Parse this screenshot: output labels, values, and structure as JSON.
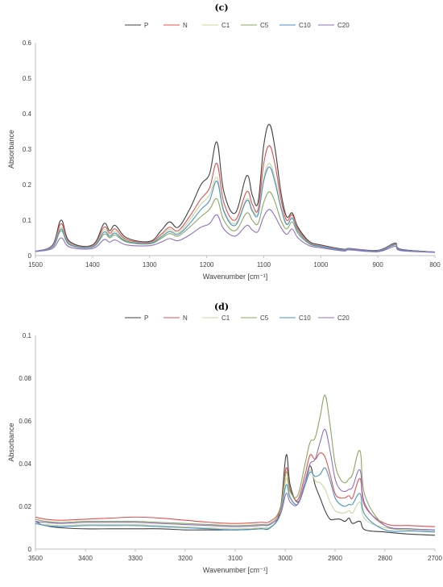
{
  "chart_data": [
    {
      "panel": "(c)",
      "type": "line",
      "xlabel": "Wavenumber [cm⁻¹]",
      "ylabel": "Absorbance",
      "xlim": [
        1500,
        800
      ],
      "ylim": [
        0,
        0.6
      ],
      "x_reversed": true,
      "grid": false,
      "legend_position": "top",
      "x_ticks": [
        "1500",
        "1400",
        "1300",
        "1200",
        "1100",
        "1000",
        "900",
        "800"
      ],
      "y_ticks": [
        "0",
        "0.1",
        "0.2",
        "0.3",
        "0.4",
        "0.5",
        "0.6"
      ],
      "series": [
        {
          "name": "P",
          "color": "#404040",
          "x": [
            1500,
            1470,
            1455,
            1440,
            1400,
            1380,
            1370,
            1360,
            1340,
            1300,
            1280,
            1265,
            1250,
            1230,
            1210,
            1195,
            1182,
            1170,
            1150,
            1130,
            1120,
            1110,
            1100,
            1090,
            1080,
            1070,
            1060,
            1050,
            1040,
            1020,
            1000,
            960,
            950,
            900,
            870,
            860,
            800
          ],
          "y": [
            0.012,
            0.03,
            0.1,
            0.04,
            0.03,
            0.09,
            0.07,
            0.085,
            0.05,
            0.04,
            0.07,
            0.095,
            0.08,
            0.13,
            0.2,
            0.23,
            0.32,
            0.18,
            0.12,
            0.225,
            0.17,
            0.15,
            0.31,
            0.37,
            0.3,
            0.18,
            0.11,
            0.12,
            0.08,
            0.04,
            0.03,
            0.018,
            0.02,
            0.015,
            0.035,
            0.018,
            0.01
          ]
        },
        {
          "name": "N",
          "color": "#e05050",
          "x": [
            1500,
            1470,
            1455,
            1440,
            1400,
            1380,
            1370,
            1360,
            1340,
            1300,
            1280,
            1265,
            1250,
            1230,
            1210,
            1195,
            1182,
            1170,
            1150,
            1130,
            1120,
            1110,
            1100,
            1090,
            1080,
            1070,
            1060,
            1050,
            1040,
            1020,
            1000,
            960,
            950,
            900,
            870,
            860,
            800
          ],
          "y": [
            0.012,
            0.028,
            0.09,
            0.036,
            0.028,
            0.08,
            0.063,
            0.075,
            0.045,
            0.038,
            0.06,
            0.08,
            0.07,
            0.11,
            0.16,
            0.19,
            0.26,
            0.15,
            0.1,
            0.18,
            0.145,
            0.13,
            0.26,
            0.31,
            0.255,
            0.16,
            0.1,
            0.115,
            0.075,
            0.038,
            0.028,
            0.017,
            0.02,
            0.014,
            0.033,
            0.017,
            0.01
          ]
        },
        {
          "name": "C1",
          "color": "#c8d8a0",
          "x": [
            1500,
            1470,
            1455,
            1440,
            1400,
            1380,
            1370,
            1360,
            1340,
            1300,
            1280,
            1265,
            1250,
            1230,
            1210,
            1195,
            1182,
            1170,
            1150,
            1130,
            1120,
            1110,
            1100,
            1090,
            1080,
            1070,
            1060,
            1050,
            1040,
            1020,
            1000,
            960,
            950,
            900,
            870,
            860,
            800
          ],
          "y": [
            0.012,
            0.026,
            0.08,
            0.034,
            0.026,
            0.072,
            0.058,
            0.068,
            0.042,
            0.036,
            0.056,
            0.074,
            0.064,
            0.1,
            0.145,
            0.17,
            0.22,
            0.13,
            0.09,
            0.16,
            0.13,
            0.12,
            0.22,
            0.26,
            0.215,
            0.14,
            0.09,
            0.108,
            0.07,
            0.036,
            0.027,
            0.016,
            0.019,
            0.013,
            0.032,
            0.016,
            0.01
          ]
        },
        {
          "name": "C5",
          "color": "#8aa860",
          "x": [
            1500,
            1470,
            1455,
            1440,
            1400,
            1380,
            1370,
            1360,
            1340,
            1300,
            1280,
            1265,
            1250,
            1230,
            1210,
            1195,
            1182,
            1170,
            1150,
            1130,
            1120,
            1110,
            1100,
            1090,
            1080,
            1070,
            1060,
            1050,
            1040,
            1020,
            1000,
            960,
            950,
            900,
            870,
            860,
            800
          ],
          "y": [
            0.012,
            0.024,
            0.07,
            0.03,
            0.024,
            0.06,
            0.05,
            0.058,
            0.038,
            0.033,
            0.048,
            0.062,
            0.055,
            0.08,
            0.11,
            0.13,
            0.16,
            0.1,
            0.07,
            0.12,
            0.1,
            0.09,
            0.15,
            0.18,
            0.15,
            0.1,
            0.075,
            0.095,
            0.062,
            0.033,
            0.025,
            0.015,
            0.018,
            0.013,
            0.03,
            0.016,
            0.01
          ]
        },
        {
          "name": "C10",
          "color": "#4a90c8",
          "x": [
            1500,
            1470,
            1455,
            1440,
            1400,
            1380,
            1370,
            1360,
            1340,
            1300,
            1280,
            1265,
            1250,
            1230,
            1210,
            1195,
            1182,
            1170,
            1150,
            1130,
            1120,
            1110,
            1100,
            1090,
            1080,
            1070,
            1060,
            1050,
            1040,
            1020,
            1000,
            960,
            950,
            900,
            870,
            860,
            800
          ],
          "y": [
            0.012,
            0.025,
            0.075,
            0.032,
            0.025,
            0.066,
            0.054,
            0.063,
            0.04,
            0.035,
            0.052,
            0.068,
            0.06,
            0.09,
            0.13,
            0.155,
            0.21,
            0.125,
            0.085,
            0.155,
            0.125,
            0.115,
            0.21,
            0.25,
            0.205,
            0.135,
            0.088,
            0.105,
            0.068,
            0.035,
            0.026,
            0.016,
            0.019,
            0.013,
            0.031,
            0.016,
            0.01
          ]
        },
        {
          "name": "C20",
          "color": "#9070c0",
          "x": [
            1500,
            1470,
            1455,
            1440,
            1400,
            1380,
            1370,
            1360,
            1340,
            1300,
            1280,
            1265,
            1250,
            1230,
            1210,
            1195,
            1182,
            1170,
            1150,
            1130,
            1120,
            1110,
            1100,
            1090,
            1080,
            1070,
            1060,
            1050,
            1040,
            1020,
            1000,
            960,
            950,
            900,
            870,
            860,
            800
          ],
          "y": [
            0.011,
            0.02,
            0.05,
            0.024,
            0.02,
            0.045,
            0.038,
            0.044,
            0.03,
            0.028,
            0.038,
            0.048,
            0.042,
            0.058,
            0.08,
            0.09,
            0.115,
            0.075,
            0.055,
            0.085,
            0.072,
            0.068,
            0.11,
            0.13,
            0.11,
            0.08,
            0.06,
            0.075,
            0.05,
            0.028,
            0.022,
            0.013,
            0.016,
            0.011,
            0.026,
            0.014,
            0.009
          ]
        }
      ]
    },
    {
      "panel": "(d)",
      "type": "line",
      "xlabel": "Wavenumber [cm⁻¹]",
      "ylabel": "Absorbance",
      "xlim": [
        3500,
        2700
      ],
      "ylim": [
        0,
        0.1
      ],
      "x_reversed": true,
      "grid": false,
      "legend_position": "top",
      "x_ticks": [
        "3500",
        "3400",
        "3300",
        "3200",
        "3100",
        "3000",
        "2900",
        "2800",
        "2700"
      ],
      "y_ticks": [
        "0",
        "0.02",
        "0.04",
        "0.06",
        "0.08",
        "0.1"
      ],
      "series": [
        {
          "name": "P",
          "color": "#404040",
          "x": [
            3500,
            3480,
            3450,
            3400,
            3350,
            3300,
            3250,
            3200,
            3150,
            3100,
            3050,
            3030,
            3010,
            2998,
            2990,
            2975,
            2960,
            2950,
            2940,
            2930,
            2920,
            2910,
            2900,
            2890,
            2880,
            2872,
            2865,
            2850,
            2840,
            2800,
            2750,
            2700
          ],
          "y": [
            0.013,
            0.011,
            0.01,
            0.0095,
            0.0095,
            0.0095,
            0.0095,
            0.009,
            0.009,
            0.009,
            0.0095,
            0.01,
            0.018,
            0.044,
            0.03,
            0.022,
            0.03,
            0.039,
            0.03,
            0.024,
            0.018,
            0.014,
            0.014,
            0.014,
            0.013,
            0.0145,
            0.012,
            0.013,
            0.009,
            0.008,
            0.007,
            0.0065
          ]
        },
        {
          "name": "N",
          "color": "#e05050",
          "x": [
            3500,
            3480,
            3450,
            3400,
            3350,
            3300,
            3250,
            3200,
            3150,
            3100,
            3050,
            3030,
            3010,
            2998,
            2990,
            2975,
            2960,
            2950,
            2940,
            2930,
            2920,
            2910,
            2900,
            2890,
            2880,
            2872,
            2865,
            2850,
            2840,
            2800,
            2750,
            2700
          ],
          "y": [
            0.015,
            0.014,
            0.0135,
            0.014,
            0.0145,
            0.015,
            0.0145,
            0.0135,
            0.0125,
            0.012,
            0.0125,
            0.013,
            0.019,
            0.038,
            0.028,
            0.023,
            0.035,
            0.044,
            0.042,
            0.045,
            0.043,
            0.035,
            0.026,
            0.024,
            0.024,
            0.025,
            0.024,
            0.033,
            0.02,
            0.012,
            0.011,
            0.0105
          ]
        },
        {
          "name": "C1",
          "color": "#c8d8a0",
          "x": [
            3500,
            3480,
            3450,
            3400,
            3350,
            3300,
            3250,
            3200,
            3150,
            3100,
            3050,
            3030,
            3010,
            2998,
            2990,
            2975,
            2960,
            2950,
            2940,
            2930,
            2920,
            2910,
            2900,
            2890,
            2880,
            2872,
            2865,
            2850,
            2840,
            2800,
            2750,
            2700
          ],
          "y": [
            0.012,
            0.0115,
            0.011,
            0.0115,
            0.0115,
            0.0115,
            0.011,
            0.0105,
            0.01,
            0.0095,
            0.01,
            0.0105,
            0.016,
            0.033,
            0.025,
            0.021,
            0.03,
            0.037,
            0.032,
            0.031,
            0.028,
            0.022,
            0.018,
            0.017,
            0.017,
            0.018,
            0.017,
            0.022,
            0.014,
            0.01,
            0.009,
            0.0085
          ]
        },
        {
          "name": "C5",
          "color": "#8aa860",
          "x": [
            3500,
            3480,
            3450,
            3400,
            3350,
            3300,
            3250,
            3200,
            3150,
            3100,
            3050,
            3030,
            3010,
            2998,
            2990,
            2975,
            2960,
            2950,
            2940,
            2930,
            2920,
            2910,
            2900,
            2890,
            2880,
            2872,
            2865,
            2850,
            2840,
            2800,
            2750,
            2700
          ],
          "y": [
            0.014,
            0.013,
            0.0125,
            0.013,
            0.013,
            0.013,
            0.0125,
            0.012,
            0.0115,
            0.011,
            0.0115,
            0.012,
            0.018,
            0.036,
            0.027,
            0.025,
            0.04,
            0.05,
            0.052,
            0.062,
            0.072,
            0.058,
            0.04,
            0.033,
            0.031,
            0.033,
            0.035,
            0.046,
            0.025,
            0.011,
            0.0095,
            0.009
          ]
        },
        {
          "name": "C10",
          "color": "#4a90c8",
          "x": [
            3500,
            3480,
            3450,
            3400,
            3350,
            3300,
            3250,
            3200,
            3150,
            3100,
            3050,
            3030,
            3010,
            2998,
            2990,
            2975,
            2960,
            2950,
            2940,
            2930,
            2920,
            2910,
            2900,
            2890,
            2880,
            2872,
            2865,
            2850,
            2840,
            2800,
            2750,
            2700
          ],
          "y": [
            0.012,
            0.011,
            0.0105,
            0.011,
            0.011,
            0.011,
            0.0105,
            0.01,
            0.0095,
            0.009,
            0.0095,
            0.01,
            0.016,
            0.03,
            0.024,
            0.021,
            0.03,
            0.036,
            0.034,
            0.035,
            0.038,
            0.032,
            0.024,
            0.021,
            0.02,
            0.021,
            0.021,
            0.026,
            0.016,
            0.009,
            0.0085,
            0.008
          ]
        },
        {
          "name": "C20",
          "color": "#9070c0",
          "x": [
            3500,
            3480,
            3450,
            3400,
            3350,
            3300,
            3250,
            3200,
            3150,
            3100,
            3050,
            3030,
            3010,
            2998,
            2990,
            2975,
            2960,
            2950,
            2940,
            2930,
            2920,
            2910,
            2900,
            2890,
            2880,
            2872,
            2865,
            2850,
            2840,
            2800,
            2750,
            2700
          ],
          "y": [
            0.013,
            0.0125,
            0.012,
            0.0125,
            0.0125,
            0.0125,
            0.012,
            0.0115,
            0.011,
            0.0105,
            0.011,
            0.0115,
            0.016,
            0.026,
            0.022,
            0.021,
            0.032,
            0.04,
            0.042,
            0.05,
            0.056,
            0.046,
            0.033,
            0.028,
            0.027,
            0.028,
            0.029,
            0.037,
            0.021,
            0.011,
            0.0095,
            0.009
          ]
        }
      ]
    }
  ]
}
